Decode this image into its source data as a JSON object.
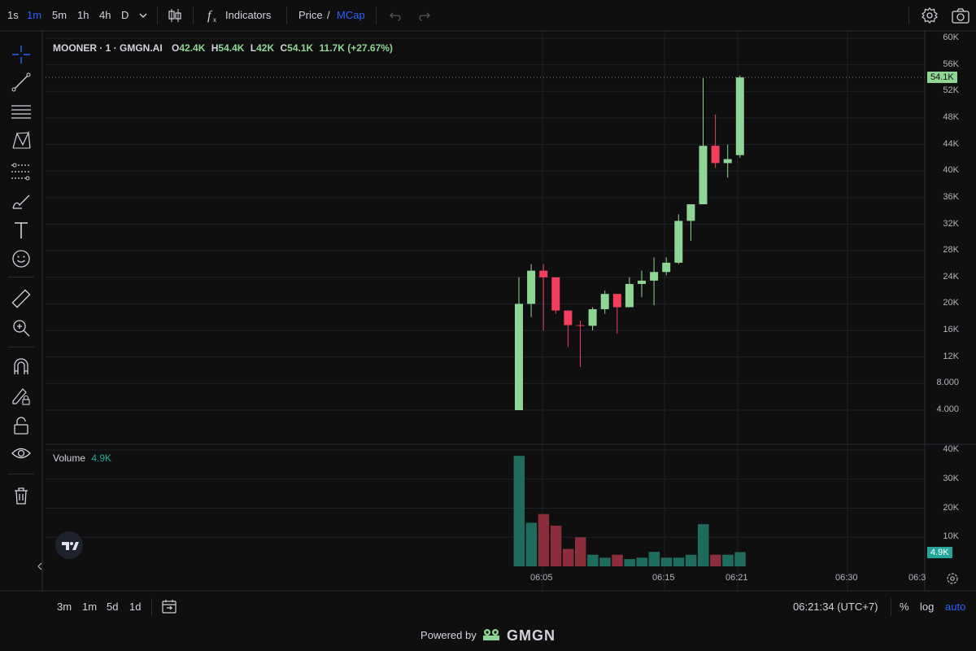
{
  "toolbar": {
    "timeframes": [
      "1s",
      "1m",
      "5m",
      "1h",
      "4h",
      "D"
    ],
    "active_timeframe": "1m",
    "indicators_label": "Indicators",
    "price_label": "Price",
    "slash": "/",
    "mcap_label": "MCap"
  },
  "legend": {
    "symbol": "MOONER · 1 · GMGN.AI",
    "o_label": "O",
    "o": "42.4K",
    "h_label": "H",
    "h": "54.4K",
    "l_label": "L",
    "l": "42K",
    "c_label": "C",
    "c": "54.1K",
    "change": "11.7K (+27.67%)"
  },
  "volume_legend": {
    "label": "Volume",
    "value": "4.9K"
  },
  "price_badge": "54.1K",
  "volume_badge": "4.9K",
  "bottom": {
    "ranges": [
      "3m",
      "1m",
      "5d",
      "1d"
    ],
    "clock": "06:21:34 (UTC+7)",
    "percent": "%",
    "log": "log",
    "auto": "auto"
  },
  "footer": {
    "powered": "Powered by",
    "brand": "GMGN"
  },
  "colors": {
    "up": "#8fd694",
    "down": "#f23f5d",
    "vol_up": "#1f6b5e",
    "vol_down": "#8b2d3b",
    "accent": "#2962ff"
  },
  "chart_data": {
    "type": "candlestick",
    "price_axis": {
      "ticks": [
        4000,
        8000,
        12000,
        16000,
        20000,
        24000,
        28000,
        32000,
        36000,
        40000,
        44000,
        48000,
        52000,
        56000,
        60000
      ],
      "tick_labels": [
        "4.000",
        "8.000",
        "12K",
        "16K",
        "20K",
        "24K",
        "28K",
        "32K",
        "36K",
        "40K",
        "44K",
        "48K",
        "52K",
        "56K",
        "60K"
      ]
    },
    "volume_axis": {
      "ticks": [
        10000,
        20000,
        30000,
        40000
      ],
      "tick_labels": [
        "10K",
        "20K",
        "30K",
        "40K"
      ]
    },
    "time_axis": {
      "tick_labels": [
        "06:05",
        "06:15",
        "06:21",
        "06:30",
        "06:3"
      ]
    },
    "candles": [
      {
        "o": 4000,
        "h": 24000,
        "l": 4000,
        "c": 20000,
        "v": 38000
      },
      {
        "o": 20000,
        "h": 26000,
        "l": 18000,
        "c": 25000,
        "v": 15000
      },
      {
        "o": 25000,
        "h": 26000,
        "l": 16000,
        "c": 24000,
        "v": 18000
      },
      {
        "o": 24000,
        "h": 24000,
        "l": 18500,
        "c": 19000,
        "v": 14000
      },
      {
        "o": 19000,
        "h": 19000,
        "l": 13500,
        "c": 16800,
        "v": 6000
      },
      {
        "o": 16800,
        "h": 17500,
        "l": 10500,
        "c": 16700,
        "v": 10000
      },
      {
        "o": 16700,
        "h": 19500,
        "l": 16000,
        "c": 19200,
        "v": 4000
      },
      {
        "o": 19200,
        "h": 22000,
        "l": 18500,
        "c": 21500,
        "v": 3000
      },
      {
        "o": 21500,
        "h": 21500,
        "l": 15500,
        "c": 19500,
        "v": 4000
      },
      {
        "o": 19500,
        "h": 24000,
        "l": 19500,
        "c": 23000,
        "v": 2500
      },
      {
        "o": 23000,
        "h": 25000,
        "l": 21000,
        "c": 23500,
        "v": 3000
      },
      {
        "o": 23500,
        "h": 27000,
        "l": 19800,
        "c": 24800,
        "v": 5000
      },
      {
        "o": 24800,
        "h": 27000,
        "l": 24300,
        "c": 26200,
        "v": 3000
      },
      {
        "o": 26200,
        "h": 33500,
        "l": 26000,
        "c": 32500,
        "v": 3000
      },
      {
        "o": 32500,
        "h": 35000,
        "l": 29500,
        "c": 35000,
        "v": 4000
      },
      {
        "o": 35000,
        "h": 54000,
        "l": 35000,
        "c": 43800,
        "v": 14500
      },
      {
        "o": 43800,
        "h": 48500,
        "l": 40500,
        "c": 41200,
        "v": 4000
      },
      {
        "o": 41200,
        "h": 44000,
        "l": 39000,
        "c": 41800,
        "v": 4000
      },
      {
        "o": 42400,
        "h": 54400,
        "l": 42000,
        "c": 54100,
        "v": 4900
      }
    ],
    "last_price": 54100
  }
}
